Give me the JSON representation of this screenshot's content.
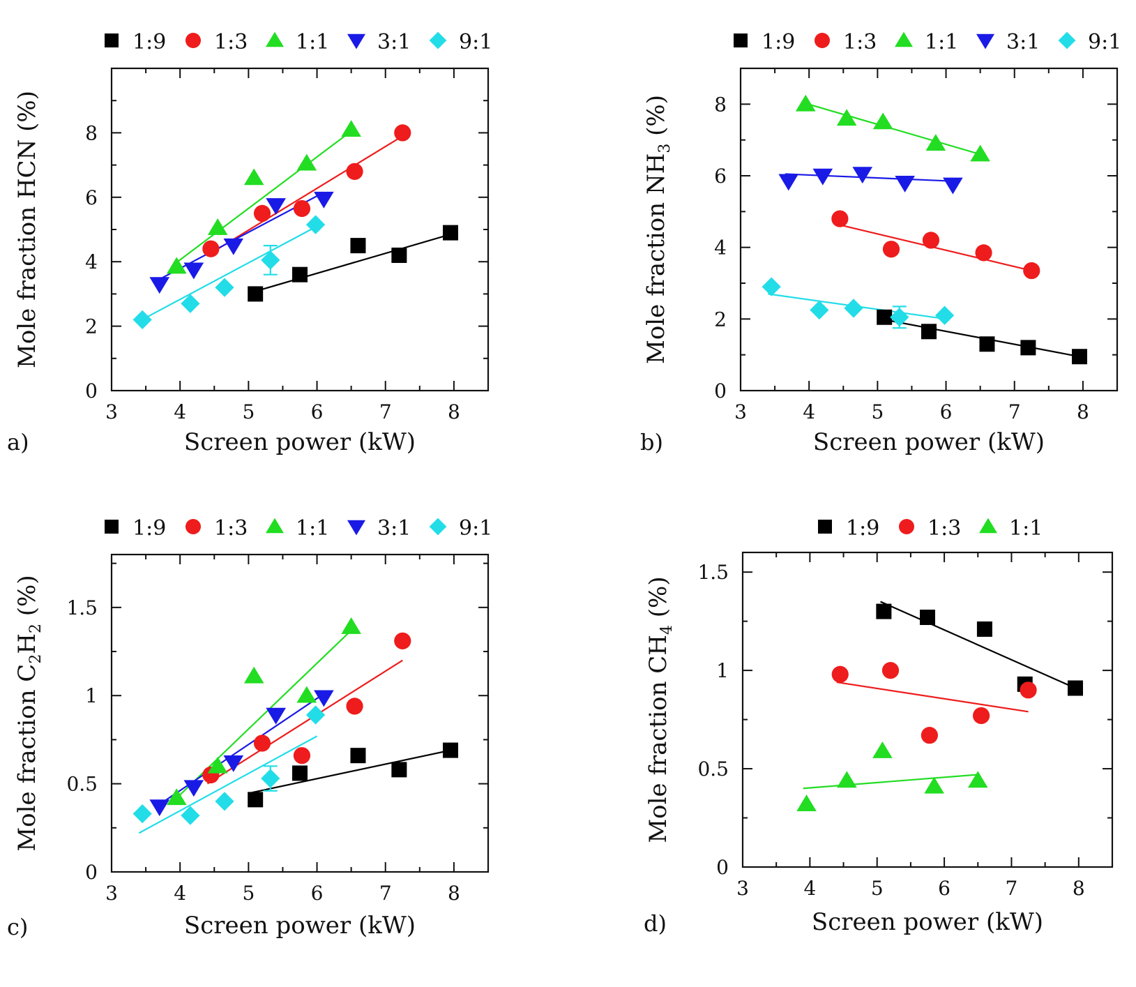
{
  "figure": {
    "xlabel": "Screen power (kW)",
    "series_colors": {
      "1:9": "#000000",
      "1:3": "#ee1c1c",
      "1:1": "#22dd22",
      "3:1": "#1a1ae6",
      "9:1": "#22dde8"
    },
    "marker_shapes": {
      "1:9": "square",
      "1:3": "circle",
      "1:1": "triangle-up",
      "3:1": "triangle-down",
      "9:1": "diamond"
    }
  },
  "chart_data": [
    {
      "panel_label": "a)",
      "type": "scatter",
      "xlabel": "Screen power (kW)",
      "ylabel_main": "Mole fraction HCN (%)",
      "ylabel_sub": "",
      "ylabel_tail": "",
      "xlim": [
        3,
        8.5
      ],
      "ylim": [
        0,
        10
      ],
      "xticks": [
        3,
        4,
        5,
        6,
        7,
        8
      ],
      "yticks": [
        0,
        2,
        4,
        6,
        8
      ],
      "ytick_labels": [
        "0",
        "2",
        "4",
        "6",
        "8"
      ],
      "legend": [
        "1:9",
        "1:3",
        "1:1",
        "3:1",
        "9:1"
      ],
      "series": [
        {
          "name": "1:9",
          "points": [
            [
              5.1,
              3.0
            ],
            [
              5.75,
              3.6
            ],
            [
              6.6,
              4.5
            ],
            [
              7.2,
              4.2
            ],
            [
              7.95,
              4.9
            ]
          ],
          "fit": [
            [
              5.05,
              3.05
            ],
            [
              7.95,
              4.85
            ]
          ]
        },
        {
          "name": "1:3",
          "points": [
            [
              4.45,
              4.4
            ],
            [
              5.2,
              5.5
            ],
            [
              5.78,
              5.65
            ],
            [
              6.55,
              6.8
            ],
            [
              7.25,
              8.0
            ]
          ],
          "fit": [
            [
              4.4,
              4.2
            ],
            [
              7.25,
              7.9
            ]
          ]
        },
        {
          "name": "1:1",
          "points": [
            [
              3.95,
              3.85
            ],
            [
              4.55,
              5.05
            ],
            [
              5.08,
              6.6
            ],
            [
              5.85,
              7.05
            ],
            [
              6.5,
              8.1
            ]
          ],
          "fit": [
            [
              3.9,
              3.9
            ],
            [
              6.5,
              8.05
            ]
          ]
        },
        {
          "name": "3:1",
          "points": [
            [
              3.7,
              3.3
            ],
            [
              4.2,
              3.75
            ],
            [
              4.78,
              4.5
            ],
            [
              5.4,
              5.75
            ],
            [
              6.1,
              5.95
            ]
          ],
          "fit": [
            [
              3.65,
              3.4
            ],
            [
              6.1,
              6.15
            ]
          ]
        },
        {
          "name": "9:1",
          "points": [
            [
              3.45,
              2.2
            ],
            [
              4.15,
              2.7
            ],
            [
              4.65,
              3.2
            ],
            [
              5.32,
              4.05
            ],
            [
              5.98,
              5.15
            ]
          ],
          "fit": [
            [
              3.4,
              2.15
            ],
            [
              6.0,
              5.1
            ]
          ]
        }
      ],
      "error_bars": [
        {
          "series": "9:1",
          "x": 5.32,
          "y": 4.05,
          "err": 0.45
        }
      ]
    },
    {
      "panel_label": "b)",
      "type": "scatter",
      "xlabel": "Screen power (kW)",
      "ylabel_main": "Mole fraction NH",
      "ylabel_sub": "3",
      "ylabel_tail": " (%)",
      "xlim": [
        3,
        8.5
      ],
      "ylim": [
        0,
        9
      ],
      "xticks": [
        3,
        4,
        5,
        6,
        7,
        8
      ],
      "yticks": [
        0,
        2,
        4,
        6,
        8
      ],
      "ytick_labels": [
        "0",
        "2",
        "4",
        "6",
        "8"
      ],
      "legend": [
        "1:9",
        "1:3",
        "1:1",
        "3:1",
        "9:1"
      ],
      "series": [
        {
          "name": "1:9",
          "points": [
            [
              5.1,
              2.05
            ],
            [
              5.75,
              1.65
            ],
            [
              6.6,
              1.3
            ],
            [
              7.2,
              1.2
            ],
            [
              7.95,
              0.95
            ]
          ],
          "fit": [
            [
              5.05,
              2.0
            ],
            [
              7.95,
              0.95
            ]
          ]
        },
        {
          "name": "1:3",
          "points": [
            [
              4.45,
              4.8
            ],
            [
              5.2,
              3.95
            ],
            [
              5.78,
              4.2
            ],
            [
              6.55,
              3.85
            ],
            [
              7.25,
              3.35
            ]
          ],
          "fit": [
            [
              4.4,
              4.65
            ],
            [
              7.25,
              3.35
            ]
          ]
        },
        {
          "name": "1:1",
          "points": [
            [
              3.95,
              8.0
            ],
            [
              4.55,
              7.6
            ],
            [
              5.08,
              7.5
            ],
            [
              5.85,
              6.9
            ],
            [
              6.5,
              6.6
            ]
          ],
          "fit": [
            [
              3.9,
              8.05
            ],
            [
              6.5,
              6.6
            ]
          ]
        },
        {
          "name": "3:1",
          "points": [
            [
              3.7,
              5.85
            ],
            [
              4.2,
              6.0
            ],
            [
              4.78,
              6.05
            ],
            [
              5.4,
              5.8
            ],
            [
              6.1,
              5.75
            ]
          ],
          "fit": [
            [
              3.65,
              6.05
            ],
            [
              6.1,
              5.85
            ]
          ]
        },
        {
          "name": "9:1",
          "points": [
            [
              3.45,
              2.9
            ],
            [
              4.15,
              2.25
            ],
            [
              4.65,
              2.3
            ],
            [
              5.32,
              2.05
            ],
            [
              5.98,
              2.1
            ]
          ],
          "fit": [
            [
              3.4,
              2.7
            ],
            [
              6.0,
              2.0
            ]
          ]
        }
      ],
      "error_bars": [
        {
          "series": "9:1",
          "x": 5.32,
          "y": 2.05,
          "err": 0.3
        }
      ]
    },
    {
      "panel_label": "c)",
      "type": "scatter",
      "xlabel": "Screen power (kW)",
      "ylabel_main": "Mole fraction C",
      "ylabel_sub": "2",
      "ylabel_tail": "H",
      "ylabel_sub2": "2",
      "ylabel_tail2": " (%)",
      "xlim": [
        3,
        8.5
      ],
      "ylim": [
        0,
        1.8
      ],
      "xticks": [
        3,
        4,
        5,
        6,
        7,
        8
      ],
      "yticks": [
        0,
        0.5,
        1,
        1.5
      ],
      "ytick_labels": [
        "0",
        "0.5",
        "1",
        "1.5"
      ],
      "legend": [
        "1:9",
        "1:3",
        "1:1",
        "3:1",
        "9:1"
      ],
      "series": [
        {
          "name": "1:9",
          "points": [
            [
              5.1,
              0.41
            ],
            [
              5.75,
              0.56
            ],
            [
              6.6,
              0.66
            ],
            [
              7.2,
              0.58
            ],
            [
              7.95,
              0.69
            ]
          ],
          "fit": [
            [
              5.05,
              0.45
            ],
            [
              7.95,
              0.69
            ]
          ]
        },
        {
          "name": "1:3",
          "points": [
            [
              4.45,
              0.55
            ],
            [
              5.2,
              0.73
            ],
            [
              5.78,
              0.66
            ],
            [
              6.55,
              0.94
            ],
            [
              7.25,
              1.31
            ]
          ],
          "fit": [
            [
              4.4,
              0.5
            ],
            [
              7.25,
              1.2
            ]
          ]
        },
        {
          "name": "1:1",
          "points": [
            [
              3.95,
              0.42
            ],
            [
              4.55,
              0.6
            ],
            [
              5.08,
              1.11
            ],
            [
              5.85,
              1.0
            ],
            [
              6.5,
              1.39
            ]
          ],
          "fit": [
            [
              3.9,
              0.4
            ],
            [
              6.5,
              1.37
            ]
          ]
        },
        {
          "name": "3:1",
          "points": [
            [
              3.7,
              0.37
            ],
            [
              4.2,
              0.48
            ],
            [
              4.78,
              0.62
            ],
            [
              5.4,
              0.89
            ],
            [
              6.1,
              0.99
            ]
          ],
          "fit": [
            [
              3.65,
              0.37
            ],
            [
              6.1,
              1.01
            ]
          ]
        },
        {
          "name": "9:1",
          "points": [
            [
              3.45,
              0.33
            ],
            [
              4.15,
              0.32
            ],
            [
              4.65,
              0.4
            ],
            [
              5.32,
              0.53
            ],
            [
              5.98,
              0.89
            ]
          ],
          "fit": [
            [
              3.4,
              0.22
            ],
            [
              6.0,
              0.77
            ]
          ]
        }
      ],
      "error_bars": [
        {
          "series": "9:1",
          "x": 5.32,
          "y": 0.53,
          "err": 0.07
        }
      ]
    },
    {
      "panel_label": "d)",
      "type": "scatter",
      "xlabel": "Screen power (kW)",
      "ylabel_main": "Mole fraction CH",
      "ylabel_sub": "4",
      "ylabel_tail": " (%)",
      "xlim": [
        3,
        8.5
      ],
      "ylim": [
        0,
        1.6
      ],
      "xticks": [
        3,
        4,
        5,
        6,
        7,
        8
      ],
      "yticks": [
        0,
        0.5,
        1,
        1.5
      ],
      "ytick_labels": [
        "0",
        "0.5",
        "1",
        "1.5"
      ],
      "legend": [
        "1:9",
        "1:3",
        "1:1"
      ],
      "series": [
        {
          "name": "1:9",
          "points": [
            [
              5.1,
              1.3
            ],
            [
              5.75,
              1.27
            ],
            [
              6.6,
              1.21
            ],
            [
              7.2,
              0.93
            ],
            [
              7.95,
              0.91
            ]
          ],
          "fit": [
            [
              5.05,
              1.35
            ],
            [
              7.95,
              0.91
            ]
          ]
        },
        {
          "name": "1:3",
          "points": [
            [
              4.45,
              0.98
            ],
            [
              5.2,
              1.0
            ],
            [
              5.78,
              0.67
            ],
            [
              6.55,
              0.77
            ],
            [
              7.25,
              0.9
            ]
          ],
          "fit": [
            [
              4.4,
              0.94
            ],
            [
              7.25,
              0.79
            ]
          ]
        },
        {
          "name": "1:1",
          "points": [
            [
              3.95,
              0.32
            ],
            [
              4.55,
              0.44
            ],
            [
              5.08,
              0.59
            ],
            [
              5.85,
              0.41
            ],
            [
              6.5,
              0.44
            ]
          ],
          "fit": [
            [
              3.9,
              0.4
            ],
            [
              6.5,
              0.47
            ]
          ]
        }
      ],
      "error_bars": []
    }
  ]
}
